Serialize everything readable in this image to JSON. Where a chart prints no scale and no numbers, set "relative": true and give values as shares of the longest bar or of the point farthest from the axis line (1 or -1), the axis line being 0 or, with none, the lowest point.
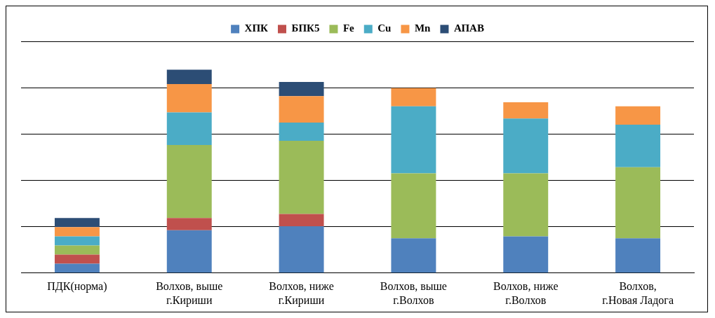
{
  "chart_data": {
    "type": "bar",
    "stacked": true,
    "relative": true,
    "grid": "y",
    "legend": "top",
    "categories": [
      "ПДК(норма)",
      "Волхов, выше\nг.Кириши",
      "Волхов, ниже\nг.Кириши",
      "Волхов, выше\nг.Волхов",
      "Волхов, ниже\nг.Волхов",
      "Волхов,\nг.Новая Ладога"
    ],
    "series": [
      {
        "name": "ХПК",
        "color": "#4f81bd",
        "values": [
          0.045,
          0.21,
          0.23,
          0.17,
          0.18,
          0.17
        ]
      },
      {
        "name": "БПК5",
        "color": "#c0504d",
        "values": [
          0.045,
          0.06,
          0.06,
          null,
          null,
          null
        ]
      },
      {
        "name": "Fe",
        "color": "#9bbb59",
        "values": [
          0.045,
          0.36,
          0.36,
          0.32,
          0.31,
          0.35
        ]
      },
      {
        "name": "Cu",
        "color": "#4bacc6",
        "values": [
          0.045,
          0.16,
          0.09,
          0.33,
          0.27,
          0.21
        ]
      },
      {
        "name": "Mn",
        "color": "#f79646",
        "values": [
          0.045,
          0.14,
          0.13,
          0.09,
          0.08,
          0.09
        ]
      },
      {
        "name": "АПАВ",
        "color": "#2c4d75",
        "values": [
          0.045,
          0.07,
          0.07,
          null,
          null,
          null
        ]
      }
    ]
  }
}
